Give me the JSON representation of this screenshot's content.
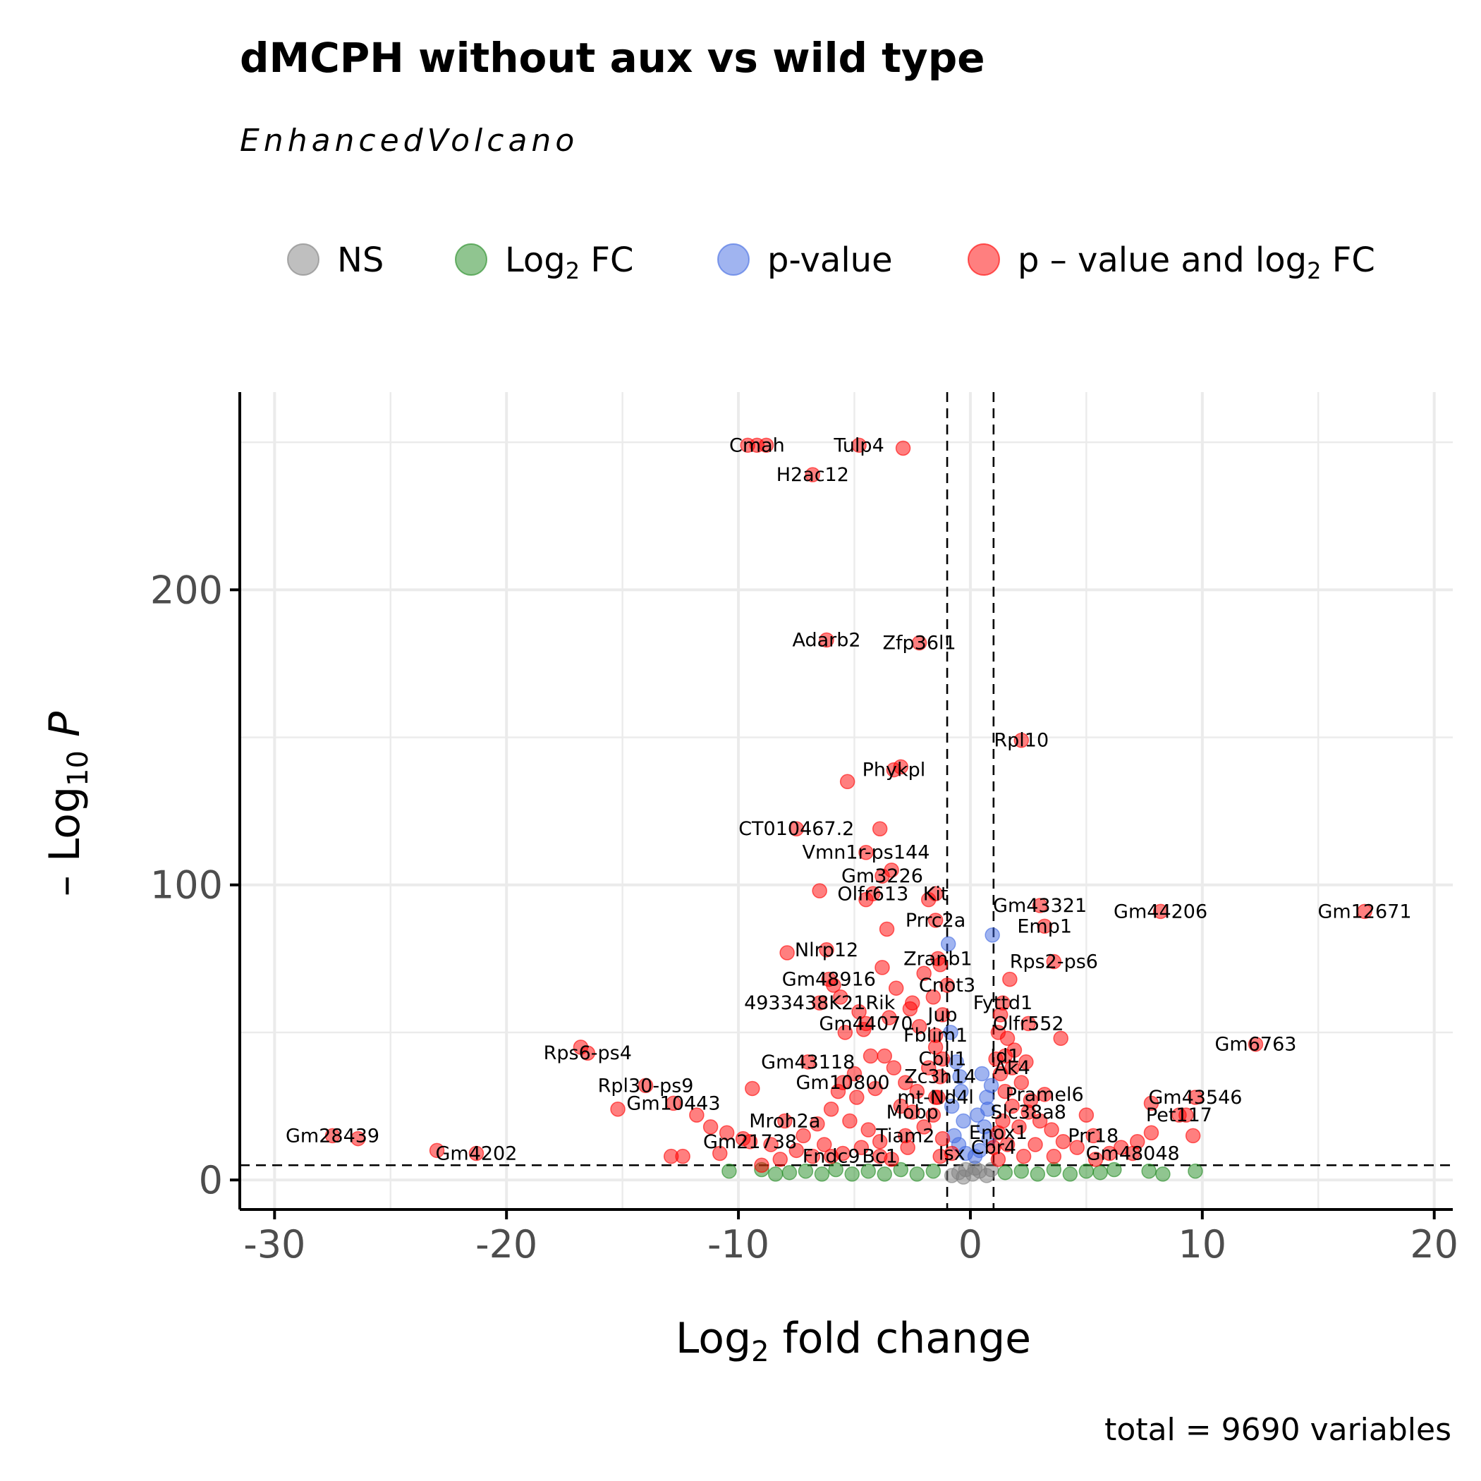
{
  "chart_data": {
    "type": "scatter",
    "title": "dMCPH without aux vs wild type",
    "subtitle": "EnhancedVolcano",
    "caption": "total = 9690 variables",
    "xlabel": {
      "main": "Log",
      "sub": "2",
      "rest": " fold change"
    },
    "ylabel": {
      "pre": "– Log",
      "sub": "10",
      "post": " P"
    },
    "xlim": [
      -31.5,
      20.8
    ],
    "ylim": [
      -10,
      267
    ],
    "x_ticks": [
      -30,
      -20,
      -10,
      0,
      10,
      20
    ],
    "x_tick_labels": [
      "-30",
      "-20",
      "-10",
      "0",
      "10",
      "20"
    ],
    "y_ticks": [
      0,
      100,
      200
    ],
    "y_tick_labels": [
      "0",
      "100",
      "200"
    ],
    "fc_cutoff": 1,
    "p_cutoff_neglog10": 5,
    "grid": true,
    "legend_position": "top",
    "legend": [
      {
        "key": "ns",
        "label": "NS",
        "sub": "",
        "rest": "",
        "color": "#7f7f7f"
      },
      {
        "key": "fc",
        "label": "Log",
        "sub": "2",
        "rest": " FC",
        "color": "#228b22"
      },
      {
        "key": "p",
        "label": "p-value",
        "sub": "",
        "rest": "",
        "color": "#4169e1"
      },
      {
        "key": "both",
        "label": "p – value and log",
        "sub": "2",
        "rest": " FC",
        "color": "#ff0000"
      }
    ],
    "colors": {
      "ns": "#7f7f7f",
      "fc": "#228b22",
      "p": "#4169e1",
      "both": "#ff0000"
    },
    "labeled_points": [
      {
        "gene": "Cmah",
        "x": -9.2,
        "y": 249
      },
      {
        "gene": "Tulp4",
        "x": -4.8,
        "y": 249
      },
      {
        "gene": "H2ac12",
        "x": -6.8,
        "y": 239
      },
      {
        "gene": "Adarb2",
        "x": -6.2,
        "y": 183
      },
      {
        "gene": "Zfp36l1",
        "x": -2.2,
        "y": 182
      },
      {
        "gene": "Rpl10",
        "x": 2.2,
        "y": 149
      },
      {
        "gene": "Phykpl",
        "x": -3.3,
        "y": 139
      },
      {
        "gene": "CT010467.2",
        "x": -7.5,
        "y": 119
      },
      {
        "gene": "Vmn1r-ps144",
        "x": -4.5,
        "y": 111
      },
      {
        "gene": "Gm3226",
        "x": -3.8,
        "y": 103
      },
      {
        "gene": "Olfr613",
        "x": -4.2,
        "y": 97
      },
      {
        "gene": "Kit",
        "x": -1.5,
        "y": 97
      },
      {
        "gene": "Gm43321",
        "x": 3.0,
        "y": 93
      },
      {
        "gene": "Gm44206",
        "x": 8.2,
        "y": 91
      },
      {
        "gene": "Gm12671",
        "x": 17.0,
        "y": 91
      },
      {
        "gene": "Prrc2a",
        "x": -1.5,
        "y": 88
      },
      {
        "gene": "Emp1",
        "x": 3.2,
        "y": 86
      },
      {
        "gene": "Nlrp12",
        "x": -6.2,
        "y": 78
      },
      {
        "gene": "Zranb1",
        "x": -1.4,
        "y": 75
      },
      {
        "gene": "Rps2-ps6",
        "x": 3.6,
        "y": 74
      },
      {
        "gene": "Gm48916",
        "x": -6.1,
        "y": 68
      },
      {
        "gene": "Cnot3",
        "x": -1.0,
        "y": 66
      },
      {
        "gene": "4933438K21Rik",
        "x": -6.5,
        "y": 60
      },
      {
        "gene": "Fyttd1",
        "x": 1.4,
        "y": 60
      },
      {
        "gene": "Jup",
        "x": -1.2,
        "y": 56
      },
      {
        "gene": "Gm44070",
        "x": -4.5,
        "y": 53
      },
      {
        "gene": "Olfr552",
        "x": 2.5,
        "y": 53
      },
      {
        "gene": "Fblim1",
        "x": -1.5,
        "y": 49
      },
      {
        "gene": "Gm6763",
        "x": 12.3,
        "y": 46
      },
      {
        "gene": "Rps6-ps4",
        "x": -16.5,
        "y": 43
      },
      {
        "gene": "Gm43118",
        "x": -7.0,
        "y": 40
      },
      {
        "gene": "Cbll1",
        "x": -1.2,
        "y": 41
      },
      {
        "gene": "Id1",
        "x": 1.5,
        "y": 42
      },
      {
        "gene": "Ak4",
        "x": 1.8,
        "y": 38
      },
      {
        "gene": "Zc3h14",
        "x": -1.3,
        "y": 35
      },
      {
        "gene": "Gm10800",
        "x": -5.5,
        "y": 33
      },
      {
        "gene": "Rpl30-ps9",
        "x": -14.0,
        "y": 32
      },
      {
        "gene": "mt-Nd4l",
        "x": -1.5,
        "y": 28
      },
      {
        "gene": "Pramel6",
        "x": 3.2,
        "y": 29
      },
      {
        "gene": "Gm43546",
        "x": 9.7,
        "y": 28
      },
      {
        "gene": "Gm10443",
        "x": -12.8,
        "y": 26
      },
      {
        "gene": "Mobp",
        "x": -2.5,
        "y": 23
      },
      {
        "gene": "Slc38a8",
        "x": 2.5,
        "y": 23
      },
      {
        "gene": "Mroh2a",
        "x": -8.0,
        "y": 20
      },
      {
        "gene": "Pet117",
        "x": 9.0,
        "y": 22
      },
      {
        "gene": "Enox1",
        "x": 1.2,
        "y": 16
      },
      {
        "gene": "Tiam2",
        "x": -2.8,
        "y": 15
      },
      {
        "gene": "Prr18",
        "x": 5.3,
        "y": 15
      },
      {
        "gene": "Gm28439",
        "x": -27.5,
        "y": 15
      },
      {
        "gene": "Gm21738",
        "x": -9.5,
        "y": 13
      },
      {
        "gene": "Gm4202",
        "x": -21.3,
        "y": 9
      },
      {
        "gene": "Cbr4",
        "x": 1.0,
        "y": 11
      },
      {
        "gene": "Isx",
        "x": -0.8,
        "y": 9
      },
      {
        "gene": "Fndc9",
        "x": -6.0,
        "y": 8
      },
      {
        "gene": "Bc1",
        "x": -3.9,
        "y": 8
      },
      {
        "gene": "Gm48048",
        "x": 7.0,
        "y": 9
      }
    ],
    "other_points": [
      {
        "x": -9.6,
        "y": 249,
        "c": "both"
      },
      {
        "x": -8.8,
        "y": 249,
        "c": "both"
      },
      {
        "x": -2.9,
        "y": 248,
        "c": "both"
      },
      {
        "x": -3.4,
        "y": 105,
        "c": "both"
      },
      {
        "x": -6.5,
        "y": 98,
        "c": "both"
      },
      {
        "x": -3.6,
        "y": 85,
        "c": "both"
      },
      {
        "x": -4.5,
        "y": 95,
        "c": "both"
      },
      {
        "x": -1.8,
        "y": 95,
        "c": "both"
      },
      {
        "x": -3.9,
        "y": 119,
        "c": "both"
      },
      {
        "x": -5.3,
        "y": 135,
        "c": "both"
      },
      {
        "x": -3.0,
        "y": 140,
        "c": "both"
      },
      {
        "x": -5.6,
        "y": 62,
        "c": "both"
      },
      {
        "x": -4.8,
        "y": 57,
        "c": "both"
      },
      {
        "x": -3.2,
        "y": 65,
        "c": "both"
      },
      {
        "x": -2.0,
        "y": 70,
        "c": "both"
      },
      {
        "x": -2.5,
        "y": 60,
        "c": "both"
      },
      {
        "x": -3.8,
        "y": 72,
        "c": "both"
      },
      {
        "x": -5.4,
        "y": 50,
        "c": "both"
      },
      {
        "x": -4.6,
        "y": 51,
        "c": "both"
      },
      {
        "x": -3.5,
        "y": 55,
        "c": "both"
      },
      {
        "x": -7.9,
        "y": 77,
        "c": "both"
      },
      {
        "x": -5.9,
        "y": 66,
        "c": "both"
      },
      {
        "x": -2.6,
        "y": 58,
        "c": "both"
      },
      {
        "x": -1.6,
        "y": 62,
        "c": "both"
      },
      {
        "x": -1.3,
        "y": 73,
        "c": "both"
      },
      {
        "x": -2.2,
        "y": 52,
        "c": "both"
      },
      {
        "x": -9.4,
        "y": 31,
        "c": "both"
      },
      {
        "x": -15.2,
        "y": 24,
        "c": "both"
      },
      {
        "x": -16.8,
        "y": 45,
        "c": "both"
      },
      {
        "x": -26.4,
        "y": 14,
        "c": "both"
      },
      {
        "x": -23.0,
        "y": 10,
        "c": "both"
      },
      {
        "x": -12.9,
        "y": 8,
        "c": "both"
      },
      {
        "x": -12.4,
        "y": 8,
        "c": "both"
      },
      {
        "x": -10.8,
        "y": 9,
        "c": "both"
      },
      {
        "x": -9.0,
        "y": 5,
        "c": "both"
      },
      {
        "x": -11.8,
        "y": 22,
        "c": "both"
      },
      {
        "x": -11.2,
        "y": 18,
        "c": "both"
      },
      {
        "x": -10.5,
        "y": 16,
        "c": "both"
      },
      {
        "x": -9.8,
        "y": 14,
        "c": "both"
      },
      {
        "x": -8.6,
        "y": 12,
        "c": "both"
      },
      {
        "x": -7.5,
        "y": 10,
        "c": "both"
      },
      {
        "x": -7.2,
        "y": 15,
        "c": "both"
      },
      {
        "x": -6.6,
        "y": 19,
        "c": "both"
      },
      {
        "x": -6.0,
        "y": 24,
        "c": "both"
      },
      {
        "x": -5.7,
        "y": 30,
        "c": "both"
      },
      {
        "x": -5.0,
        "y": 36,
        "c": "both"
      },
      {
        "x": -4.3,
        "y": 42,
        "c": "both"
      },
      {
        "x": -3.7,
        "y": 42,
        "c": "both"
      },
      {
        "x": -3.3,
        "y": 38,
        "c": "both"
      },
      {
        "x": -2.8,
        "y": 33,
        "c": "both"
      },
      {
        "x": -4.9,
        "y": 28,
        "c": "both"
      },
      {
        "x": -4.1,
        "y": 31,
        "c": "both"
      },
      {
        "x": -3.0,
        "y": 25,
        "c": "both"
      },
      {
        "x": -2.3,
        "y": 30,
        "c": "both"
      },
      {
        "x": -1.8,
        "y": 38,
        "c": "both"
      },
      {
        "x": -1.5,
        "y": 45,
        "c": "both"
      },
      {
        "x": -5.2,
        "y": 20,
        "c": "both"
      },
      {
        "x": -4.4,
        "y": 17,
        "c": "both"
      },
      {
        "x": -3.9,
        "y": 13,
        "c": "both"
      },
      {
        "x": -2.7,
        "y": 11,
        "c": "both"
      },
      {
        "x": -2.0,
        "y": 18,
        "c": "both"
      },
      {
        "x": -1.6,
        "y": 22,
        "c": "both"
      },
      {
        "x": -1.3,
        "y": 8,
        "c": "both"
      },
      {
        "x": -1.2,
        "y": 14,
        "c": "both"
      },
      {
        "x": -1.4,
        "y": 28,
        "c": "both"
      },
      {
        "x": -6.8,
        "y": 8,
        "c": "both"
      },
      {
        "x": -6.3,
        "y": 12,
        "c": "both"
      },
      {
        "x": -5.5,
        "y": 9,
        "c": "both"
      },
      {
        "x": -4.7,
        "y": 11,
        "c": "both"
      },
      {
        "x": -3.4,
        "y": 7,
        "c": "both"
      },
      {
        "x": -8.2,
        "y": 7,
        "c": "both"
      },
      {
        "x": 1.2,
        "y": 50,
        "c": "both"
      },
      {
        "x": 1.6,
        "y": 48,
        "c": "both"
      },
      {
        "x": 1.9,
        "y": 44,
        "c": "both"
      },
      {
        "x": 1.3,
        "y": 36,
        "c": "both"
      },
      {
        "x": 2.2,
        "y": 33,
        "c": "both"
      },
      {
        "x": 1.5,
        "y": 30,
        "c": "both"
      },
      {
        "x": 2.6,
        "y": 27,
        "c": "both"
      },
      {
        "x": 1.8,
        "y": 25,
        "c": "both"
      },
      {
        "x": 3.0,
        "y": 20,
        "c": "both"
      },
      {
        "x": 3.5,
        "y": 17,
        "c": "both"
      },
      {
        "x": 2.1,
        "y": 18,
        "c": "both"
      },
      {
        "x": 1.4,
        "y": 20,
        "c": "both"
      },
      {
        "x": 4.0,
        "y": 13,
        "c": "both"
      },
      {
        "x": 4.6,
        "y": 11,
        "c": "both"
      },
      {
        "x": 2.8,
        "y": 12,
        "c": "both"
      },
      {
        "x": 1.6,
        "y": 12,
        "c": "both"
      },
      {
        "x": 5.0,
        "y": 22,
        "c": "both"
      },
      {
        "x": 6.0,
        "y": 9,
        "c": "both"
      },
      {
        "x": 6.5,
        "y": 11,
        "c": "both"
      },
      {
        "x": 7.2,
        "y": 13,
        "c": "both"
      },
      {
        "x": 7.8,
        "y": 16,
        "c": "both"
      },
      {
        "x": 9.3,
        "y": 22,
        "c": "both"
      },
      {
        "x": 9.6,
        "y": 15,
        "c": "both"
      },
      {
        "x": 7.8,
        "y": 26,
        "c": "both"
      },
      {
        "x": 3.9,
        "y": 48,
        "c": "both"
      },
      {
        "x": 1.7,
        "y": 68,
        "c": "both"
      },
      {
        "x": 1.3,
        "y": 56,
        "c": "both"
      },
      {
        "x": 2.4,
        "y": 40,
        "c": "both"
      },
      {
        "x": 1.1,
        "y": 41,
        "c": "both"
      },
      {
        "x": 3.6,
        "y": 8,
        "c": "both"
      },
      {
        "x": 2.3,
        "y": 8,
        "c": "both"
      },
      {
        "x": 1.2,
        "y": 7,
        "c": "both"
      },
      {
        "x": 5.4,
        "y": 7,
        "c": "both"
      },
      {
        "x": -0.95,
        "y": 80,
        "c": "p"
      },
      {
        "x": 0.95,
        "y": 83,
        "c": "p"
      },
      {
        "x": -0.6,
        "y": 40,
        "c": "p"
      },
      {
        "x": -0.4,
        "y": 30,
        "c": "p"
      },
      {
        "x": -0.8,
        "y": 25,
        "c": "p"
      },
      {
        "x": -0.3,
        "y": 20,
        "c": "p"
      },
      {
        "x": -0.7,
        "y": 15,
        "c": "p"
      },
      {
        "x": -0.5,
        "y": 12,
        "c": "p"
      },
      {
        "x": -0.2,
        "y": 9,
        "c": "p"
      },
      {
        "x": -0.85,
        "y": 50,
        "c": "p"
      },
      {
        "x": -0.45,
        "y": 35,
        "c": "p"
      },
      {
        "x": 0.5,
        "y": 36,
        "c": "p"
      },
      {
        "x": 0.7,
        "y": 28,
        "c": "p"
      },
      {
        "x": 0.3,
        "y": 22,
        "c": "p"
      },
      {
        "x": 0.6,
        "y": 18,
        "c": "p"
      },
      {
        "x": 0.8,
        "y": 14,
        "c": "p"
      },
      {
        "x": 0.4,
        "y": 10,
        "c": "p"
      },
      {
        "x": 0.9,
        "y": 32,
        "c": "p"
      },
      {
        "x": 0.2,
        "y": 8,
        "c": "p"
      },
      {
        "x": 0.75,
        "y": 24,
        "c": "p"
      },
      {
        "x": -10.4,
        "y": 3,
        "c": "fc"
      },
      {
        "x": -8.4,
        "y": 2,
        "c": "fc"
      },
      {
        "x": -7.8,
        "y": 2.5,
        "c": "fc"
      },
      {
        "x": -7.1,
        "y": 3,
        "c": "fc"
      },
      {
        "x": -6.4,
        "y": 2,
        "c": "fc"
      },
      {
        "x": -5.8,
        "y": 3.5,
        "c": "fc"
      },
      {
        "x": -5.1,
        "y": 2,
        "c": "fc"
      },
      {
        "x": -4.4,
        "y": 3,
        "c": "fc"
      },
      {
        "x": -3.7,
        "y": 2,
        "c": "fc"
      },
      {
        "x": -3.0,
        "y": 3.5,
        "c": "fc"
      },
      {
        "x": -2.3,
        "y": 2,
        "c": "fc"
      },
      {
        "x": -1.6,
        "y": 3,
        "c": "fc"
      },
      {
        "x": 1.5,
        "y": 2.5,
        "c": "fc"
      },
      {
        "x": 2.2,
        "y": 3,
        "c": "fc"
      },
      {
        "x": 2.9,
        "y": 2,
        "c": "fc"
      },
      {
        "x": 3.6,
        "y": 3.5,
        "c": "fc"
      },
      {
        "x": 4.3,
        "y": 2,
        "c": "fc"
      },
      {
        "x": 5.0,
        "y": 3,
        "c": "fc"
      },
      {
        "x": 5.6,
        "y": 2.5,
        "c": "fc"
      },
      {
        "x": 7.7,
        "y": 3,
        "c": "fc"
      },
      {
        "x": 8.3,
        "y": 2,
        "c": "fc"
      },
      {
        "x": 9.7,
        "y": 3,
        "c": "fc"
      },
      {
        "x": -9.0,
        "y": 3.5,
        "c": "fc"
      },
      {
        "x": 6.2,
        "y": 3.5,
        "c": "fc"
      },
      {
        "x": -0.8,
        "y": 1.5,
        "c": "ns"
      },
      {
        "x": -0.5,
        "y": 2.5,
        "c": "ns"
      },
      {
        "x": -0.2,
        "y": 3.5,
        "c": "ns"
      },
      {
        "x": 0.1,
        "y": 2,
        "c": "ns"
      },
      {
        "x": 0.4,
        "y": 3,
        "c": "ns"
      },
      {
        "x": 0.7,
        "y": 1.5,
        "c": "ns"
      },
      {
        "x": -0.3,
        "y": 1,
        "c": "ns"
      },
      {
        "x": 0.2,
        "y": 4,
        "c": "ns"
      },
      {
        "x": 0.9,
        "y": 3.5,
        "c": "ns"
      }
    ]
  }
}
